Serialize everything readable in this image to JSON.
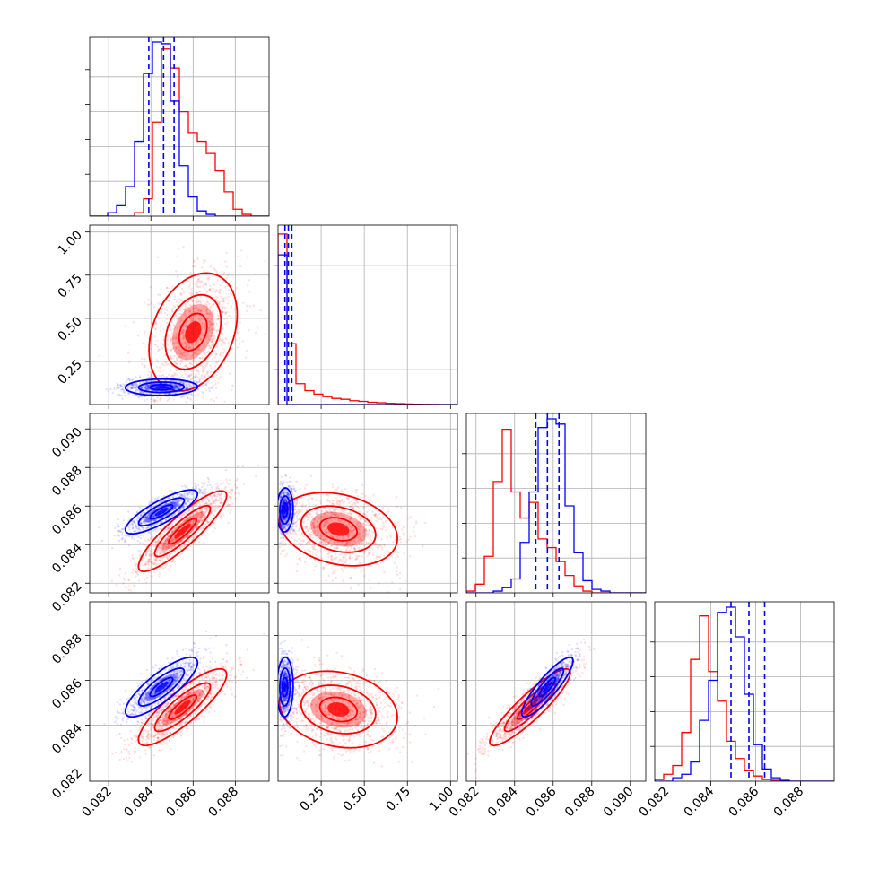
{
  "chart_data": {
    "type": "corner",
    "description_note": "",
    "series": [
      {
        "key": "blue",
        "color": "#0000ff"
      },
      {
        "key": "red",
        "color": "#ff0000"
      }
    ],
    "params": [
      {
        "range": [
          0.0811,
          0.0896
        ],
        "ticks": [
          0.082,
          0.084,
          0.086,
          0.088
        ],
        "labels": [
          "0.082",
          "0.084",
          "0.086",
          "0.088"
        ]
      },
      {
        "range": [
          0.0,
          1.04
        ],
        "ticks": [
          0.25,
          0.5,
          0.75,
          1.0
        ],
        "labels": [
          "0.25",
          "0.50",
          "0.75",
          "1.00"
        ]
      },
      {
        "range": [
          0.0815,
          0.0908
        ],
        "ticks": [
          0.082,
          0.084,
          0.086,
          0.088,
          0.09
        ],
        "labels": [
          "0.082",
          "0.084",
          "0.086",
          "0.088",
          "0.090"
        ]
      },
      {
        "range": [
          0.0815,
          0.0895
        ],
        "ticks": [
          0.082,
          0.084,
          0.086,
          0.088
        ],
        "labels": [
          "0.082",
          "0.084",
          "0.086",
          "0.088"
        ]
      }
    ],
    "quantiles": {
      "blue": [
        [
          0.0839,
          0.0846,
          0.0851
        ],
        [
          0.04,
          0.06,
          0.08
        ],
        [
          0.0851,
          0.0857,
          0.0863
        ],
        [
          0.0849,
          0.0857,
          0.0864
        ]
      ]
    },
    "histograms": [
      {
        "blue": [
          0,
          0,
          0.02,
          0.06,
          0.17,
          0.43,
          0.82,
          1.0,
          0.99,
          0.66,
          0.29,
          0.11,
          0.03,
          0.01,
          0,
          0,
          0,
          0,
          0,
          0
        ],
        "red": [
          0,
          0,
          0,
          0,
          0,
          0.02,
          0.1,
          0.54,
          0.96,
          0.85,
          0.6,
          0.48,
          0.43,
          0.36,
          0.26,
          0.14,
          0.04,
          0.01,
          0,
          0
        ]
      },
      {
        "blue": [
          0.86,
          0,
          0,
          0,
          0,
          0,
          0,
          0,
          0,
          0,
          0,
          0,
          0,
          0,
          0,
          0,
          0,
          0,
          0,
          0
        ],
        "red": [
          0.98,
          0.35,
          0.12,
          0.08,
          0.06,
          0.045,
          0.035,
          0.03,
          0.022,
          0.018,
          0.013,
          0.01,
          0.007,
          0.005,
          0.003,
          0.002,
          0.001,
          0.0005,
          0,
          0
        ]
      },
      {
        "blue": [
          0,
          0,
          0,
          0.01,
          0.03,
          0.08,
          0.29,
          0.58,
          0.95,
          1.0,
          0.97,
          0.5,
          0.23,
          0.07,
          0.02,
          0.01,
          0,
          0,
          0,
          0
        ],
        "red": [
          0.01,
          0.05,
          0.21,
          0.64,
          0.94,
          0.58,
          0.43,
          0.52,
          0.31,
          0.26,
          0.18,
          0.1,
          0.04,
          0.01,
          0,
          0,
          0,
          0,
          0,
          0
        ]
      },
      {
        "blue": [
          0,
          0,
          0.02,
          0.04,
          0.11,
          0.35,
          0.58,
          0.97,
          1.0,
          0.83,
          0.5,
          0.21,
          0.07,
          0.02,
          0.005,
          0,
          0,
          0,
          0,
          0
        ],
        "red": [
          0.01,
          0.04,
          0.09,
          0.28,
          0.7,
          0.95,
          0.63,
          0.46,
          0.23,
          0.13,
          0.06,
          0.03,
          0.01,
          0.005,
          0,
          0,
          0,
          0,
          0,
          0
        ]
      }
    ],
    "pairs": [
      {
        "i": 1,
        "j": 0,
        "blue": {
          "mean": [
            0.0845,
            0.1
          ],
          "sd": [
            0.0009,
            0.025
          ],
          "rho": 0.05
        },
        "red": {
          "mean": [
            0.086,
            0.42
          ],
          "sd": [
            0.0011,
            0.18
          ],
          "rho": 0.3
        }
      },
      {
        "i": 2,
        "j": 0,
        "blue": {
          "mean": [
            0.0845,
            0.0857
          ],
          "sd": [
            0.0009,
            0.0006
          ],
          "rho": 0.82
        },
        "red": {
          "mean": [
            0.0855,
            0.0847
          ],
          "sd": [
            0.0011,
            0.0011
          ],
          "rho": 0.88
        }
      },
      {
        "i": 2,
        "j": 1,
        "blue": {
          "mean": [
            0.04,
            0.0858
          ],
          "sd": [
            0.025,
            0.0006
          ],
          "rho": 0.05
        },
        "red": {
          "mean": [
            0.35,
            0.0848
          ],
          "sd": [
            0.18,
            0.001
          ],
          "rho": -0.25
        }
      },
      {
        "i": 3,
        "j": 0,
        "blue": {
          "mean": [
            0.0845,
            0.0857
          ],
          "sd": [
            0.0009,
            0.0007
          ],
          "rho": 0.82
        },
        "red": {
          "mean": [
            0.0855,
            0.0848
          ],
          "sd": [
            0.0011,
            0.0009
          ],
          "rho": 0.85
        }
      },
      {
        "i": 3,
        "j": 1,
        "blue": {
          "mean": [
            0.04,
            0.0857
          ],
          "sd": [
            0.025,
            0.0007
          ],
          "rho": 0.05
        },
        "red": {
          "mean": [
            0.35,
            0.0847
          ],
          "sd": [
            0.18,
            0.0009
          ],
          "rho": -0.2
        }
      },
      {
        "i": 3,
        "j": 2,
        "blue": {
          "mean": [
            0.0857,
            0.0857
          ],
          "sd": [
            0.0007,
            0.0007
          ],
          "rho": 0.88
        },
        "red": {
          "mean": [
            0.0848,
            0.0848
          ],
          "sd": [
            0.0011,
            0.0009
          ],
          "rho": 0.9
        }
      }
    ]
  }
}
